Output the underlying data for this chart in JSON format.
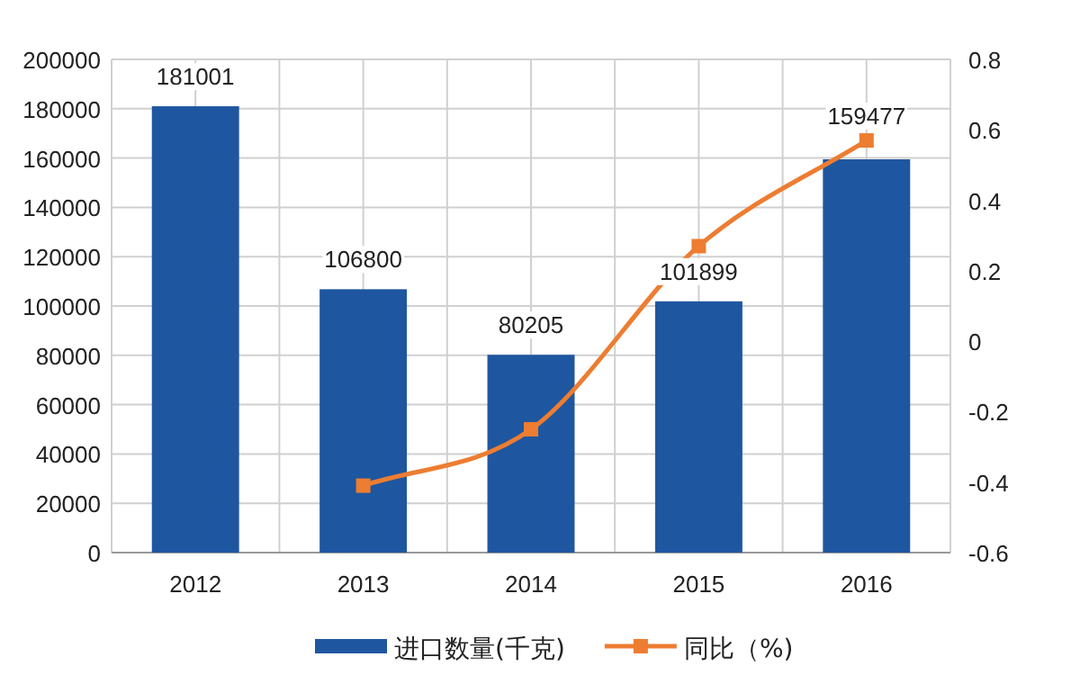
{
  "chart_data": {
    "type": "bar",
    "categories": [
      "2012",
      "2013",
      "2014",
      "2015",
      "2016"
    ],
    "series": [
      {
        "name": "进口数量(千克)",
        "color": "#1f56a0",
        "values": [
          181001,
          106800,
          80205,
          101899,
          159477
        ],
        "value_labels": [
          "181001",
          "106800",
          "80205",
          "101899",
          "159477"
        ]
      },
      {
        "name": "同比（%)",
        "type": "line",
        "axis": "y2",
        "color": "#ed7d31",
        "marker": "square",
        "values": [
          null,
          -0.41,
          -0.25,
          0.27,
          0.57
        ]
      }
    ],
    "ylim": [
      0,
      200000
    ],
    "yticks": [
      0,
      20000,
      40000,
      60000,
      80000,
      100000,
      120000,
      140000,
      160000,
      180000,
      200000
    ],
    "y2lim": [
      -0.6,
      0.8
    ],
    "y2ticks": [
      -0.6,
      -0.4,
      -0.2,
      0,
      0.2,
      0.4,
      0.6,
      0.8
    ],
    "grid": true,
    "legend": "bottom"
  }
}
